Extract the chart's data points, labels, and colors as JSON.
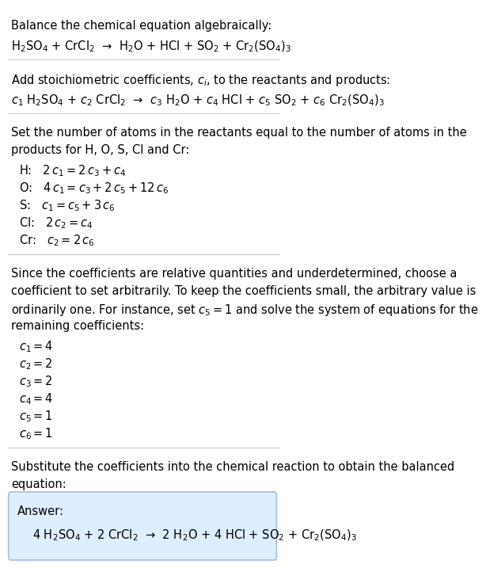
{
  "title_section": "Balance the chemical equation algebraically:",
  "eq1": "H$_2$SO$_4$ + CrCl$_2$  →  H$_2$O + HCl + SO$_2$ + Cr$_2$(SO$_4$)$_3$",
  "section2_intro": "Add stoichiometric coefficients, $c_i$, to the reactants and products:",
  "eq2": "$c_1$ H$_2$SO$_4$ + $c_2$ CrCl$_2$  →  $c_3$ H$_2$O + $c_4$ HCl + $c_5$ SO$_2$ + $c_6$ Cr$_2$(SO$_4$)$_3$",
  "section3_intro_line1": "Set the number of atoms in the reactants equal to the number of atoms in the",
  "section3_intro_line2": "products for H, O, S, Cl and Cr:",
  "equations": [
    "H:   $2\\,c_1 = 2\\,c_3 + c_4$",
    "O:   $4\\,c_1 = c_3 + 2\\,c_5 + 12\\,c_6$",
    "S:   $c_1 = c_5 + 3\\,c_6$",
    "Cl:   $2\\,c_2 = c_4$",
    "Cr:   $c_2 = 2\\,c_6$"
  ],
  "section4_intro_lines": [
    "Since the coefficients are relative quantities and underdetermined, choose a",
    "coefficient to set arbitrarily. To keep the coefficients small, the arbitrary value is",
    "ordinarily one. For instance, set $c_5 = 1$ and solve the system of equations for the",
    "remaining coefficients:"
  ],
  "coefficients": [
    "$c_1 = 4$",
    "$c_2 = 2$",
    "$c_3 = 2$",
    "$c_4 = 4$",
    "$c_5 = 1$",
    "$c_6 = 1$"
  ],
  "section5_intro_lines": [
    "Substitute the coefficients into the chemical reaction to obtain the balanced",
    "equation:"
  ],
  "answer_label": "Answer:",
  "answer_eq": "4 H$_2$SO$_4$ + 2 CrCl$_2$  →  2 H$_2$O + 4 HCl + SO$_2$ + Cr$_2$(SO$_4$)$_3$",
  "bg_color": "#ffffff",
  "answer_box_color": "#ddeeff",
  "answer_box_border": "#aabbdd",
  "text_color": "#000000",
  "font_size": 10.5
}
